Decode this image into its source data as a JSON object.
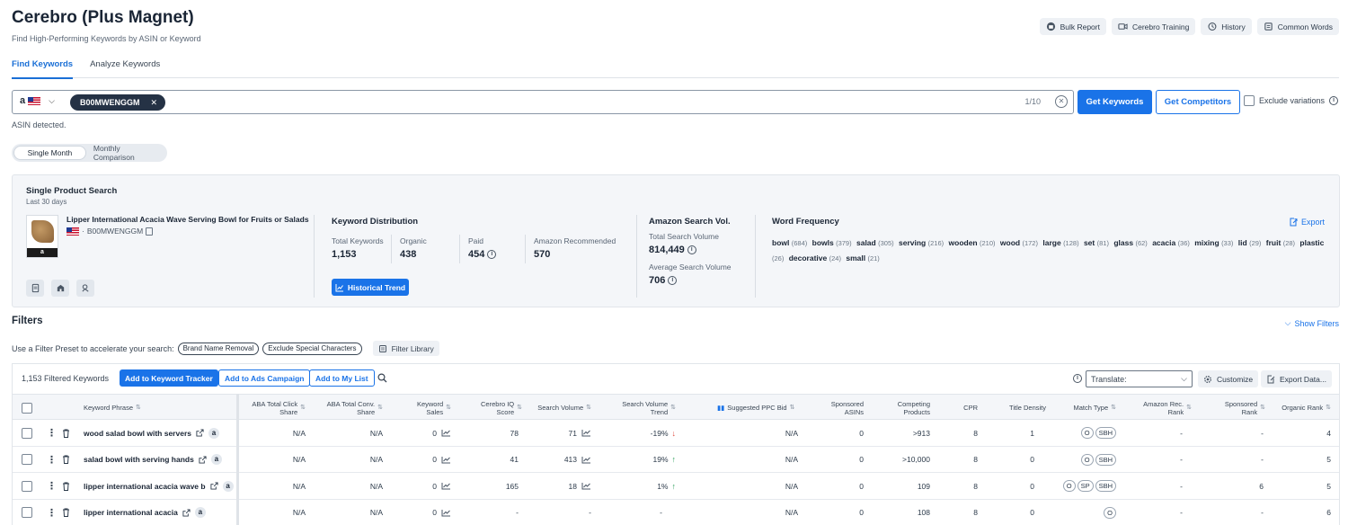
{
  "header": {
    "title": "Cerebro (Plus Magnet)",
    "subtitle": "Find High-Performing Keywords by ASIN or Keyword",
    "actions": [
      {
        "label": "Bulk Report",
        "icon": "bulk-report-icon"
      },
      {
        "label": "Cerebro Training",
        "icon": "video-icon"
      },
      {
        "label": "History",
        "icon": "history-icon"
      },
      {
        "label": "Common Words",
        "icon": "book-icon"
      }
    ]
  },
  "tabs": [
    {
      "label": "Find Keywords",
      "active": true
    },
    {
      "label": "Analyze Keywords",
      "active": false
    }
  ],
  "search": {
    "marketplace": "a",
    "asin_chip": "B00MWENGGM",
    "count": "1/10",
    "get_keywords": "Get Keywords",
    "get_competitors": "Get Competitors",
    "exclude_variations": "Exclude variations",
    "status": "ASIN detected."
  },
  "view_toggle": {
    "options": [
      "Single Month",
      "Monthly Comparison"
    ],
    "selected": "Single Month"
  },
  "summary": {
    "title": "Single Product Search",
    "subtitle": "Last 30 days",
    "product": {
      "name": "Lipper International Acacia Wave Serving Bowl for Fruits or Salads",
      "asin": "B00MWENGGM",
      "sep": "·",
      "amz": "a"
    },
    "keyword_distribution": {
      "title": "Keyword Distribution",
      "stats": [
        {
          "label": "Total Keywords",
          "value": "1,153"
        },
        {
          "label": "Organic",
          "value": "438"
        },
        {
          "label": "Paid",
          "value": "454"
        },
        {
          "label": "Amazon Recommended",
          "value": "570"
        }
      ],
      "button": "Historical Trend"
    },
    "amazon_search_vol": {
      "title": "Amazon Search Vol.",
      "total_label": "Total Search Volume",
      "total_value": "814,449",
      "avg_label": "Average Search Volume",
      "avg_value": "706"
    },
    "word_frequency": {
      "title": "Word Frequency",
      "export": "Export",
      "words": [
        {
          "word": "bowl",
          "count": "(684)"
        },
        {
          "word": "bowls",
          "count": "(379)"
        },
        {
          "word": "salad",
          "count": "(305)"
        },
        {
          "word": "serving",
          "count": "(216)"
        },
        {
          "word": "wooden",
          "count": "(210)"
        },
        {
          "word": "wood",
          "count": "(172)"
        },
        {
          "word": "large",
          "count": "(128)"
        },
        {
          "word": "set",
          "count": "(81)"
        },
        {
          "word": "glass",
          "count": "(62)"
        },
        {
          "word": "acacia",
          "count": "(36)"
        },
        {
          "word": "mixing",
          "count": "(33)"
        },
        {
          "word": "lid",
          "count": "(29)"
        },
        {
          "word": "fruit",
          "count": "(28)"
        },
        {
          "word": "plastic",
          "count": "(26)"
        },
        {
          "word": "decorative",
          "count": "(24)"
        },
        {
          "word": "small",
          "count": "(21)"
        }
      ]
    }
  },
  "filters": {
    "title": "Filters",
    "show_filters": "Show Filters",
    "preset_text": "Use a Filter Preset to accelerate your search:",
    "presets": [
      "Brand Name Removal",
      "Exclude Special Characters"
    ],
    "library": "Filter Library"
  },
  "toolbar": {
    "count": "1,153 Filtered Keywords",
    "add_tracker": "Add to Keyword Tracker",
    "add_ads": "Add to Ads Campaign",
    "add_list": "Add to My List",
    "translate_placeholder": "Translate:",
    "customize": "Customize",
    "export": "Export Data..."
  },
  "table": {
    "headers": {
      "keyword": "Keyword Phrase",
      "aba_click": "ABA Total Click Share",
      "aba_conv": "ABA Total Conv. Share",
      "kw_sales": "Keyword Sales",
      "iq": "Cerebro IQ Score",
      "sv": "Search Volume",
      "sv_trend": "Search Volume Trend",
      "ppc": "Suggested PPC Bid",
      "sponsored_asins": "Sponsored ASINs",
      "competing": "Competing Products",
      "cpr": "CPR",
      "title_density": "Title Density",
      "match": "Match Type",
      "amz_rec": "Amazon Rec. Rank",
      "sponsored_rank": "Sponsored Rank",
      "organic": "Organic Rank"
    },
    "rows": [
      {
        "keyword": "wood salad bowl with servers",
        "aba_click": "N/A",
        "aba_conv": "N/A",
        "kw_sales": "0",
        "iq": "78",
        "sv": "71",
        "trend": "-19%",
        "trend_dir": "down",
        "ppc": "N/A",
        "sponsored_asins": "0",
        "competing": ">913",
        "cpr": "8",
        "title_density": "1",
        "match": [
          "O",
          "SBH"
        ],
        "amz_rec": "-",
        "sponsored_rank": "-",
        "organic": "4"
      },
      {
        "keyword": "salad bowl with serving hands",
        "aba_click": "N/A",
        "aba_conv": "N/A",
        "kw_sales": "0",
        "iq": "41",
        "sv": "413",
        "trend": "19%",
        "trend_dir": "up",
        "ppc": "N/A",
        "sponsored_asins": "0",
        "competing": ">10,000",
        "cpr": "8",
        "title_density": "0",
        "match": [
          "O",
          "SBH"
        ],
        "amz_rec": "-",
        "sponsored_rank": "-",
        "organic": "5"
      },
      {
        "keyword": "lipper international acacia wave b",
        "aba_click": "N/A",
        "aba_conv": "N/A",
        "kw_sales": "0",
        "iq": "165",
        "sv": "18",
        "trend": "1%",
        "trend_dir": "up",
        "ppc": "N/A",
        "sponsored_asins": "0",
        "competing": "109",
        "cpr": "8",
        "title_density": "0",
        "match": [
          "O",
          "SP",
          "SBH"
        ],
        "amz_rec": "-",
        "sponsored_rank": "6",
        "organic": "5"
      },
      {
        "keyword": "lipper international acacia",
        "aba_click": "N/A",
        "aba_conv": "N/A",
        "kw_sales": "0",
        "iq": "-",
        "sv": "-",
        "trend": "-",
        "trend_dir": "none",
        "ppc": "N/A",
        "sponsored_asins": "0",
        "competing": "108",
        "cpr": "8",
        "title_density": "0",
        "match": [
          "O"
        ],
        "amz_rec": "-",
        "sponsored_rank": "-",
        "organic": "6"
      }
    ]
  },
  "colors": {
    "accent": "#1a73e8",
    "chip_dark": "#253245",
    "trend_up": "#2e9e5b",
    "trend_down": "#e04a3f"
  }
}
